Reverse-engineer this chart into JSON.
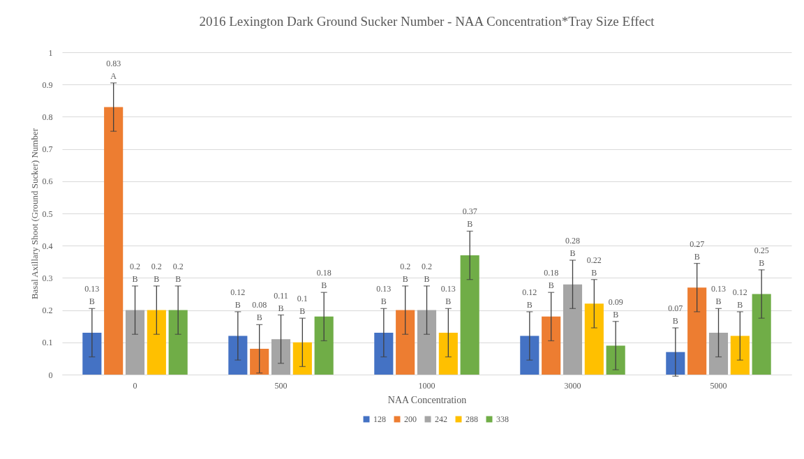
{
  "chart_data": {
    "type": "bar",
    "title": "2016 Lexington Dark Ground Sucker Number - NAA Concentration*Tray Size Effect",
    "xlabel": "NAA Concentration",
    "ylabel": "Basal Axillary Shoot (Ground Sucker) Number",
    "categories": [
      "0",
      "500",
      "1000",
      "3000",
      "5000"
    ],
    "series": [
      {
        "name": "128",
        "color": "#4472c4",
        "values": [
          0.13,
          0.12,
          0.13,
          0.12,
          0.07
        ],
        "errors": [
          0.075,
          0.075,
          0.075,
          0.075,
          0.075
        ],
        "value_labels": [
          "0.13\nB",
          "0.12\nB",
          "0.13\nB",
          "0.12\nB",
          "0.07\nB"
        ]
      },
      {
        "name": "200",
        "color": "#ed7d31",
        "values": [
          0.83,
          0.08,
          0.2,
          0.18,
          0.27
        ],
        "errors": [
          0.075,
          0.075,
          0.075,
          0.075,
          0.075
        ],
        "value_labels": [
          "0.83\nA",
          "0.08\nB",
          "0.2\nB",
          "0.18\nB",
          "0.27\nB"
        ]
      },
      {
        "name": "242",
        "color": "#a5a5a5",
        "values": [
          0.2,
          0.11,
          0.2,
          0.28,
          0.13
        ],
        "errors": [
          0.075,
          0.075,
          0.075,
          0.075,
          0.075
        ],
        "value_labels": [
          "0.2\nB",
          "0.11\nB",
          "0.2\nB",
          "0.28\nB",
          "0.13\nB"
        ]
      },
      {
        "name": "288",
        "color": "#ffc000",
        "values": [
          0.2,
          0.1,
          0.13,
          0.22,
          0.12
        ],
        "errors": [
          0.075,
          0.075,
          0.075,
          0.075,
          0.075
        ],
        "value_labels": [
          "0.2\nB",
          "0.1\nB",
          "0.13\nB",
          "0.22\nB",
          "0.12\nB"
        ]
      },
      {
        "name": "338",
        "color": "#70ad47",
        "values": [
          0.2,
          0.18,
          0.37,
          0.09,
          0.25
        ],
        "errors": [
          0.075,
          0.075,
          0.075,
          0.075,
          0.075
        ],
        "value_labels": [
          "0.2\nB",
          "0.18\nB",
          "0.37\nB",
          "0.09\nB",
          "0.25\nB"
        ]
      }
    ],
    "ylim": [
      0,
      1
    ],
    "yticks": [
      0,
      0.1,
      0.2,
      0.3,
      0.4,
      0.5,
      0.6,
      0.7,
      0.8,
      0.9,
      1
    ],
    "grid": "y",
    "legend": "bottom"
  }
}
